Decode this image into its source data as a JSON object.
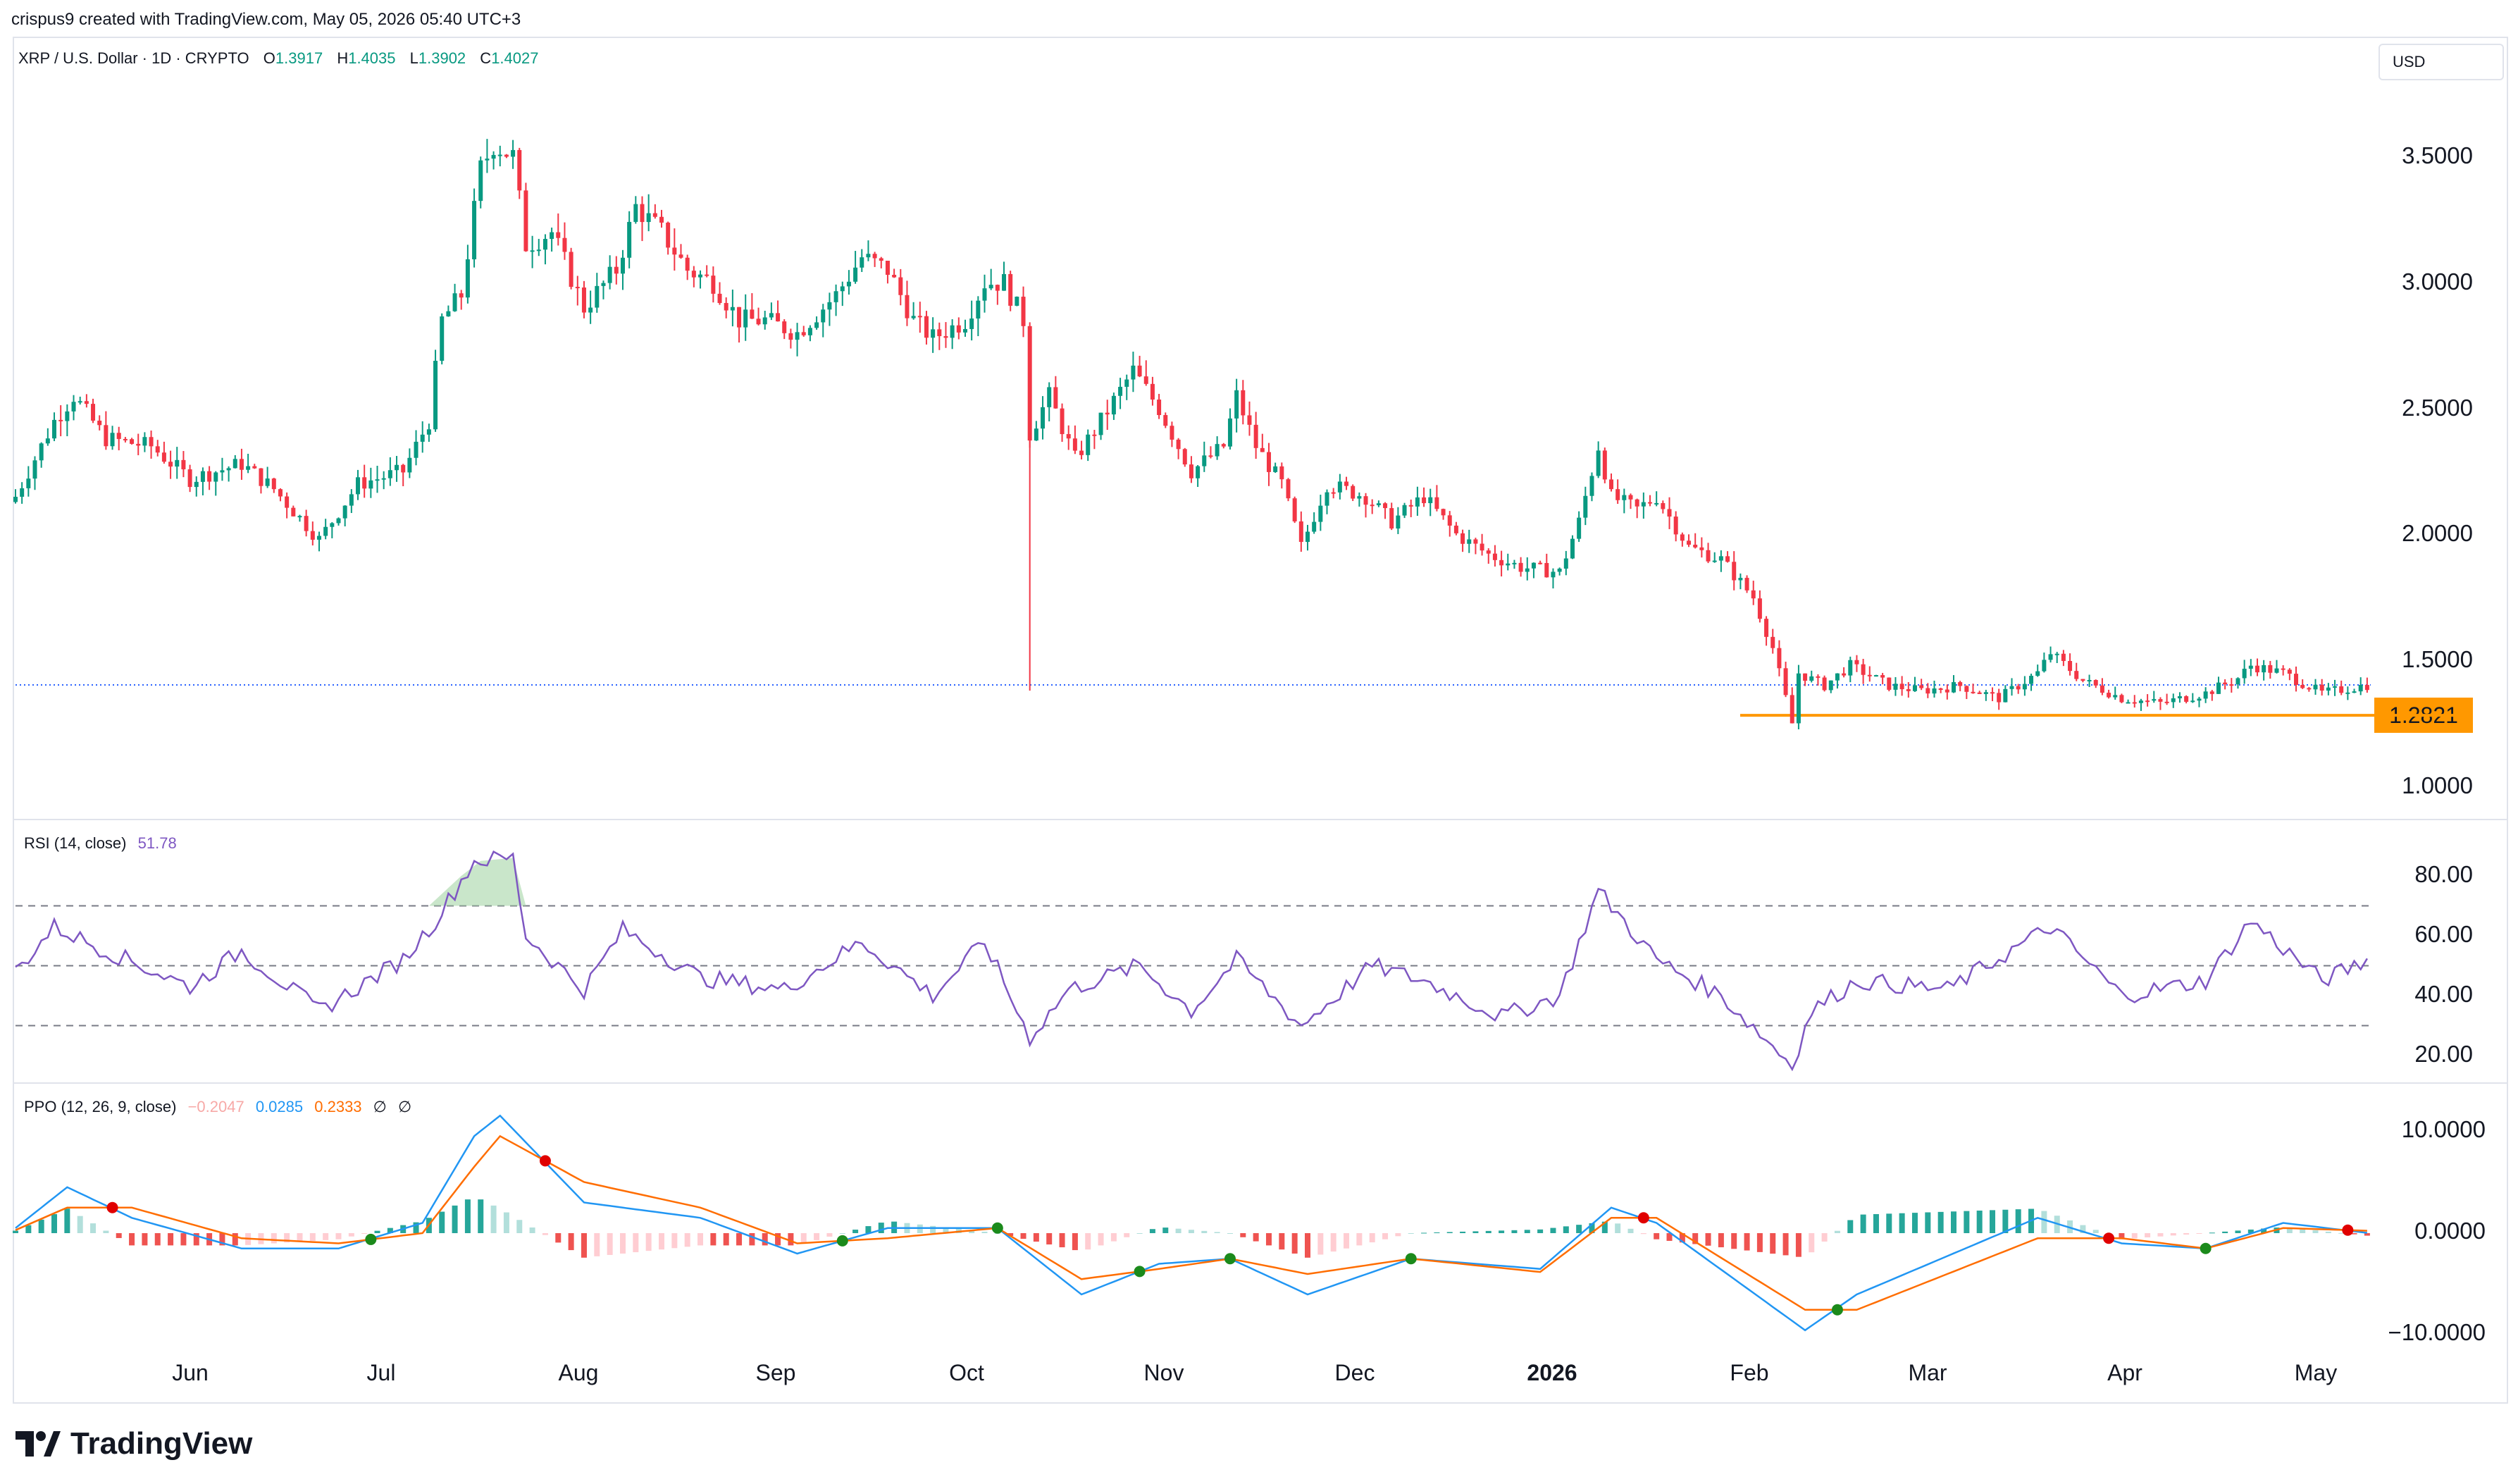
{
  "credit": "crispus9 created with TradingView.com, May 05, 2026 05:40 UTC+3",
  "currency_button": "USD",
  "header": {
    "symbol": "XRP / U.S. Dollar · 1D · CRYPTO",
    "o_label": "O",
    "o_value": "1.3917",
    "h_label": "H",
    "h_value": "1.4035",
    "l_label": "L",
    "l_value": "1.3902",
    "c_label": "C",
    "c_value": "1.4027"
  },
  "price_axis": [
    "3.5000",
    "3.0000",
    "2.5000",
    "2.0000",
    "1.5000",
    "1.0000"
  ],
  "support_level_label": "1.2821",
  "rsi": {
    "label": "RSI (14, close)",
    "value": "51.78",
    "ticks": [
      "80.00",
      "60.00",
      "40.00",
      "20.00"
    ]
  },
  "ppo": {
    "label": "PPO (12, 26, 9, close)",
    "hist_value": "−0.2047",
    "ppo_value": "0.0285",
    "signal_value": "0.2333",
    "extra1": "∅",
    "extra2": "∅",
    "ticks": [
      "10.0000",
      "0.0000",
      "−10.0000"
    ]
  },
  "x_axis": [
    "Jun",
    "Jul",
    "Aug",
    "Sep",
    "Oct",
    "Nov",
    "Dec",
    "2026",
    "Feb",
    "Mar",
    "Apr",
    "May"
  ],
  "logo_text": "TradingView",
  "colors": {
    "up": "#089981",
    "down": "#f23645",
    "rsi": "#7e57c2",
    "ppo": "#2196f3",
    "signal": "#ff6d00",
    "support": "#ff9800",
    "hist_up": "#26a69a",
    "hist_up_light": "#b2dfdb",
    "hist_down": "#ef5350",
    "hist_down_light": "#ffcdd2"
  },
  "chart_data": {
    "type": "candlestick",
    "title": "XRP / U.S. Dollar · 1D · CRYPTO",
    "ylim": [
      0.85,
      3.8
    ],
    "close_anchors": [
      {
        "date": "2025-05-06",
        "close": 2.15
      },
      {
        "date": "2025-05-12",
        "close": 2.45
      },
      {
        "date": "2025-05-15",
        "close": 2.55
      },
      {
        "date": "2025-05-20",
        "close": 2.38
      },
      {
        "date": "2025-05-27",
        "close": 2.35
      },
      {
        "date": "2025-06-02",
        "close": 2.22
      },
      {
        "date": "2025-06-10",
        "close": 2.28
      },
      {
        "date": "2025-06-15",
        "close": 2.18
      },
      {
        "date": "2025-06-22",
        "close": 1.98
      },
      {
        "date": "2025-06-28",
        "close": 2.2
      },
      {
        "date": "2025-07-05",
        "close": 2.25
      },
      {
        "date": "2025-07-09",
        "close": 2.45
      },
      {
        "date": "2025-07-11",
        "close": 2.85
      },
      {
        "date": "2025-07-14",
        "close": 2.95
      },
      {
        "date": "2025-07-17",
        "close": 3.45
      },
      {
        "date": "2025-07-19",
        "close": 3.55
      },
      {
        "date": "2025-07-22",
        "close": 3.5
      },
      {
        "date": "2025-07-24",
        "close": 3.15
      },
      {
        "date": "2025-07-28",
        "close": 3.2
      },
      {
        "date": "2025-08-02",
        "close": 2.9
      },
      {
        "date": "2025-08-07",
        "close": 3.05
      },
      {
        "date": "2025-08-10",
        "close": 3.3
      },
      {
        "date": "2025-08-14",
        "close": 3.2
      },
      {
        "date": "2025-08-18",
        "close": 3.05
      },
      {
        "date": "2025-08-22",
        "close": 3.0
      },
      {
        "date": "2025-08-26",
        "close": 2.85
      },
      {
        "date": "2025-08-30",
        "close": 2.85
      },
      {
        "date": "2025-09-04",
        "close": 2.8
      },
      {
        "date": "2025-09-10",
        "close": 2.95
      },
      {
        "date": "2025-09-14",
        "close": 3.1
      },
      {
        "date": "2025-09-18",
        "close": 3.05
      },
      {
        "date": "2025-09-22",
        "close": 2.85
      },
      {
        "date": "2025-09-25",
        "close": 2.78
      },
      {
        "date": "2025-09-30",
        "close": 2.85
      },
      {
        "date": "2025-10-03",
        "close": 3.0
      },
      {
        "date": "2025-10-06",
        "close": 3.0
      },
      {
        "date": "2025-10-09",
        "close": 2.85
      },
      {
        "date": "2025-10-10",
        "close": 2.4
      },
      {
        "date": "2025-10-13",
        "close": 2.55
      },
      {
        "date": "2025-10-17",
        "close": 2.3
      },
      {
        "date": "2025-10-21",
        "close": 2.45
      },
      {
        "date": "2025-10-26",
        "close": 2.65
      },
      {
        "date": "2025-10-30",
        "close": 2.5
      },
      {
        "date": "2025-11-04",
        "close": 2.25
      },
      {
        "date": "2025-11-09",
        "close": 2.35
      },
      {
        "date": "2025-11-11",
        "close": 2.55
      },
      {
        "date": "2025-11-14",
        "close": 2.35
      },
      {
        "date": "2025-11-18",
        "close": 2.2
      },
      {
        "date": "2025-11-21",
        "close": 1.95
      },
      {
        "date": "2025-11-25",
        "close": 2.2
      },
      {
        "date": "2025-12-01",
        "close": 2.15
      },
      {
        "date": "2025-12-05",
        "close": 2.05
      },
      {
        "date": "2025-12-10",
        "close": 2.15
      },
      {
        "date": "2025-12-15",
        "close": 2.0
      },
      {
        "date": "2025-12-20",
        "close": 1.92
      },
      {
        "date": "2025-12-25",
        "close": 1.87
      },
      {
        "date": "2025-12-31",
        "close": 1.85
      },
      {
        "date": "2026-01-03",
        "close": 2.05
      },
      {
        "date": "2026-01-06",
        "close": 2.35
      },
      {
        "date": "2026-01-08",
        "close": 2.15
      },
      {
        "date": "2026-01-12",
        "close": 2.1
      },
      {
        "date": "2026-01-15",
        "close": 2.15
      },
      {
        "date": "2026-01-20",
        "close": 1.95
      },
      {
        "date": "2026-01-25",
        "close": 1.9
      },
      {
        "date": "2026-01-30",
        "close": 1.75
      },
      {
        "date": "2026-02-02",
        "close": 1.55
      },
      {
        "date": "2026-02-05",
        "close": 1.25
      },
      {
        "date": "2026-02-06",
        "close": 1.45
      },
      {
        "date": "2026-02-10",
        "close": 1.4
      },
      {
        "date": "2026-02-14",
        "close": 1.48
      },
      {
        "date": "2026-02-20",
        "close": 1.4
      },
      {
        "date": "2026-02-25",
        "close": 1.38
      },
      {
        "date": "2026-03-03",
        "close": 1.4
      },
      {
        "date": "2026-03-09",
        "close": 1.35
      },
      {
        "date": "2026-03-15",
        "close": 1.45
      },
      {
        "date": "2026-03-17",
        "close": 1.53
      },
      {
        "date": "2026-03-22",
        "close": 1.42
      },
      {
        "date": "2026-03-28",
        "close": 1.35
      },
      {
        "date": "2026-04-03",
        "close": 1.33
      },
      {
        "date": "2026-04-10",
        "close": 1.37
      },
      {
        "date": "2026-04-15",
        "close": 1.43
      },
      {
        "date": "2026-04-17",
        "close": 1.48
      },
      {
        "date": "2026-04-22",
        "close": 1.45
      },
      {
        "date": "2026-04-28",
        "close": 1.37
      },
      {
        "date": "2026-05-05",
        "close": 1.4027
      }
    ],
    "support_level": 1.2821,
    "last_price": 1.4027,
    "rsi_anchors": [
      {
        "date": "2025-05-06",
        "value": 48
      },
      {
        "date": "2025-05-12",
        "value": 63
      },
      {
        "date": "2025-05-20",
        "value": 55
      },
      {
        "date": "2025-06-02",
        "value": 43
      },
      {
        "date": "2025-06-10",
        "value": 55
      },
      {
        "date": "2025-06-22",
        "value": 35
      },
      {
        "date": "2025-07-05",
        "value": 52
      },
      {
        "date": "2025-07-10",
        "value": 65
      },
      {
        "date": "2025-07-16",
        "value": 85
      },
      {
        "date": "2025-07-22",
        "value": 86
      },
      {
        "date": "2025-07-24",
        "value": 60
      },
      {
        "date": "2025-08-02",
        "value": 42
      },
      {
        "date": "2025-08-08",
        "value": 62
      },
      {
        "date": "2025-08-20",
        "value": 46
      },
      {
        "date": "2025-09-02",
        "value": 42
      },
      {
        "date": "2025-09-14",
        "value": 58
      },
      {
        "date": "2025-09-25",
        "value": 40
      },
      {
        "date": "2025-10-03",
        "value": 58
      },
      {
        "date": "2025-10-10",
        "value": 26
      },
      {
        "date": "2025-10-16",
        "value": 42
      },
      {
        "date": "2025-10-27",
        "value": 50
      },
      {
        "date": "2025-11-04",
        "value": 35
      },
      {
        "date": "2025-11-11",
        "value": 52
      },
      {
        "date": "2025-11-21",
        "value": 30
      },
      {
        "date": "2025-12-02",
        "value": 50
      },
      {
        "date": "2025-12-10",
        "value": 45
      },
      {
        "date": "2025-12-22",
        "value": 33
      },
      {
        "date": "2025-12-31",
        "value": 40
      },
      {
        "date": "2026-01-06",
        "value": 75
      },
      {
        "date": "2026-01-15",
        "value": 52
      },
      {
        "date": "2026-01-25",
        "value": 40
      },
      {
        "date": "2026-02-05",
        "value": 17
      },
      {
        "date": "2026-02-08",
        "value": 35
      },
      {
        "date": "2026-02-15",
        "value": 45
      },
      {
        "date": "2026-03-01",
        "value": 42
      },
      {
        "date": "2026-03-17",
        "value": 63
      },
      {
        "date": "2026-03-28",
        "value": 40
      },
      {
        "date": "2026-04-10",
        "value": 45
      },
      {
        "date": "2026-04-17",
        "value": 65
      },
      {
        "date": "2026-04-28",
        "value": 45
      },
      {
        "date": "2026-05-05",
        "value": 51.78
      }
    ],
    "ppo_anchors": [
      {
        "date": "2025-05-06",
        "ppo": 0.5,
        "signal": 0.3
      },
      {
        "date": "2025-05-14",
        "ppo": 4.5,
        "signal": 2.5
      },
      {
        "date": "2025-05-24",
        "ppo": 1.5,
        "signal": 2.5
      },
      {
        "date": "2025-06-10",
        "ppo": -1.5,
        "signal": -0.5
      },
      {
        "date": "2025-06-25",
        "ppo": -1.5,
        "signal": -1.0
      },
      {
        "date": "2025-07-08",
        "ppo": 1.0,
        "signal": 0.0
      },
      {
        "date": "2025-07-16",
        "ppo": 9.5,
        "signal": 6.5
      },
      {
        "date": "2025-07-20",
        "ppo": 11.5,
        "signal": 9.5
      },
      {
        "date": "2025-08-02",
        "ppo": 3.0,
        "signal": 5.0
      },
      {
        "date": "2025-08-20",
        "ppo": 1.5,
        "signal": 2.5
      },
      {
        "date": "2025-09-04",
        "ppo": -2.0,
        "signal": -1.0
      },
      {
        "date": "2025-09-18",
        "ppo": 0.5,
        "signal": -0.5
      },
      {
        "date": "2025-10-05",
        "ppo": 0.5,
        "signal": 0.5
      },
      {
        "date": "2025-10-18",
        "ppo": -6.0,
        "signal": -4.5
      },
      {
        "date": "2025-10-30",
        "ppo": -3.0,
        "signal": -3.5
      },
      {
        "date": "2025-11-10",
        "ppo": -2.5,
        "signal": -2.5
      },
      {
        "date": "2025-11-22",
        "ppo": -6.0,
        "signal": -4.0
      },
      {
        "date": "2025-12-08",
        "ppo": -2.5,
        "signal": -2.5
      },
      {
        "date": "2025-12-28",
        "ppo": -3.5,
        "signal": -3.8
      },
      {
        "date": "2026-01-08",
        "ppo": 2.5,
        "signal": 1.5
      },
      {
        "date": "2026-01-15",
        "ppo": 1.0,
        "signal": 1.5
      },
      {
        "date": "2026-02-07",
        "ppo": -9.5,
        "signal": -7.5
      },
      {
        "date": "2026-02-15",
        "ppo": -6.0,
        "signal": -7.5
      },
      {
        "date": "2026-03-15",
        "ppo": 1.5,
        "signal": -0.5
      },
      {
        "date": "2026-03-28",
        "ppo": -1.0,
        "signal": -0.5
      },
      {
        "date": "2026-04-10",
        "ppo": -1.5,
        "signal": -1.5
      },
      {
        "date": "2026-04-22",
        "ppo": 1.0,
        "signal": 0.5
      },
      {
        "date": "2026-05-05",
        "ppo": 0.0285,
        "signal": 0.2333
      }
    ]
  }
}
